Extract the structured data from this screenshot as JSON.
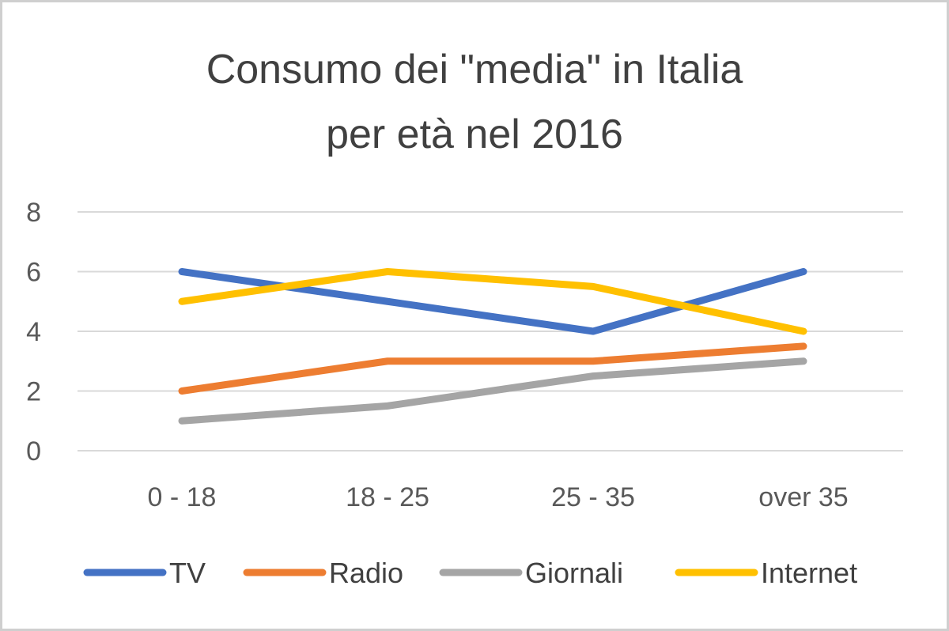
{
  "chart_data": {
    "type": "line",
    "title_lines": [
      "Consumo dei \"media\" in Italia",
      "per età nel 2016"
    ],
    "categories": [
      "0 - 18",
      "18 - 25",
      "25 - 35",
      "over 35"
    ],
    "ylim": [
      0,
      8
    ],
    "yticks": [
      "0",
      "2",
      "4",
      "6",
      "8"
    ],
    "grid": true,
    "legend_position": "bottom",
    "series": [
      {
        "name": "TV",
        "color": "#4472c4",
        "values": [
          6,
          5,
          4,
          6
        ]
      },
      {
        "name": "Radio",
        "color": "#ed7d31",
        "values": [
          2,
          3,
          3,
          3.5
        ]
      },
      {
        "name": "Giornali",
        "color": "#a5a5a5",
        "values": [
          1,
          1.5,
          2.5,
          3
        ]
      },
      {
        "name": "Internet",
        "color": "#ffc000",
        "values": [
          5,
          6,
          5.5,
          4
        ]
      }
    ]
  }
}
